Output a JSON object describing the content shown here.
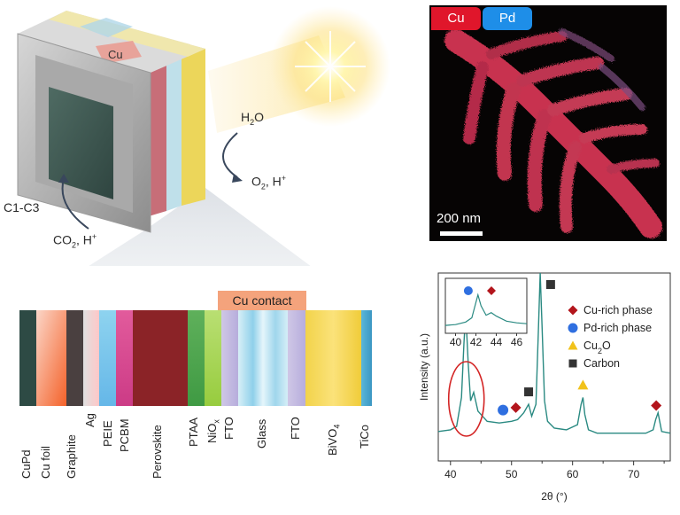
{
  "device": {
    "cu_tab": "Cu",
    "water_label": "H",
    "water_sub": "2",
    "water_tail": "O",
    "oxygen_main": "O",
    "oxygen_sub": "2",
    "oxygen_tail": ", H",
    "oxygen_sup": "+",
    "product_label": "C1-C3",
    "co2_main": "CO",
    "co2_sub": "2",
    "co2_tail": ", H",
    "co2_sup": "+"
  },
  "stack": {
    "cu_contact": "Cu contact",
    "layers": [
      "CuPd",
      "Cu foil",
      "Graphite",
      "Ag",
      "PEIE",
      "PCBM",
      "Perovskite",
      "PTAA",
      "NiO",
      "FTO",
      "Glass",
      "FTO",
      "BiVO",
      "TiCo"
    ],
    "nio_sub": "x",
    "bivo_sub": "4"
  },
  "micrograph": {
    "cu_tag": "Cu",
    "pd_tag": "Pd",
    "scale_bar": "200 nm",
    "colors": {
      "cu": "#e0162b",
      "pd": "#1e8ee8"
    }
  },
  "chart_data": {
    "type": "line",
    "xlabel": "2θ (°)",
    "ylabel": "Intensity (a.u.)",
    "xlim": [
      38,
      76
    ],
    "xticks": [
      "40",
      "50",
      "60",
      "70"
    ],
    "x": [
      38,
      40,
      41,
      41.8,
      42.2,
      42.5,
      42.9,
      43.3,
      43.8,
      44.5,
      46,
      48,
      50,
      51,
      52,
      52.8,
      53.3,
      54,
      54.4,
      54.7,
      55.0,
      55.4,
      55.9,
      57,
      59,
      60.8,
      61.4,
      61.7,
      62.0,
      62.6,
      64,
      66,
      68,
      70,
      72,
      73.2,
      73.6,
      74.0,
      74.6,
      76
    ],
    "y": [
      10,
      11,
      13,
      30,
      62,
      80,
      50,
      28,
      33,
      22,
      16,
      15,
      16,
      17,
      21,
      26,
      19,
      26,
      70,
      100,
      72,
      28,
      16,
      12,
      11,
      14,
      26,
      30,
      20,
      11,
      9,
      9,
      9,
      9,
      9,
      11,
      17,
      21,
      10,
      9
    ],
    "series": [
      {
        "values_note": "",
        "color": "#2a8a82"
      }
    ],
    "legend": [
      {
        "label": "Cu-rich phase",
        "marker": "diamond",
        "color": "#b3151c"
      },
      {
        "label": "Pd-rich phase",
        "marker": "circle",
        "color": "#2f6fe0"
      },
      {
        "label": "Cu",
        "sub": "2",
        "tail": "O",
        "marker": "triangle",
        "color": "#f1c21b"
      },
      {
        "label": "Carbon",
        "marker": "square",
        "color": "#333333"
      }
    ],
    "markers": [
      {
        "type": "diamond",
        "x": 50.7
      },
      {
        "type": "circle",
        "x": 48.6
      },
      {
        "type": "square",
        "x": 52.8
      },
      {
        "type": "triangle",
        "x": 61.7
      },
      {
        "type": "diamond",
        "x": 73.7
      },
      {
        "type": "square",
        "x": 56.4
      }
    ],
    "inset": {
      "xlim": [
        39,
        47
      ],
      "xticks": [
        "40",
        "42",
        "44",
        "46"
      ],
      "x": [
        39,
        40,
        41,
        41.6,
        42.0,
        42.2,
        42.5,
        43.0,
        43.5,
        44,
        45,
        46,
        47
      ],
      "y": [
        6,
        8,
        14,
        24,
        60,
        78,
        52,
        30,
        36,
        28,
        16,
        12,
        10
      ],
      "markers": [
        {
          "type": "circle",
          "x": 41.6
        },
        {
          "type": "diamond",
          "x": 43.0
        }
      ]
    }
  }
}
